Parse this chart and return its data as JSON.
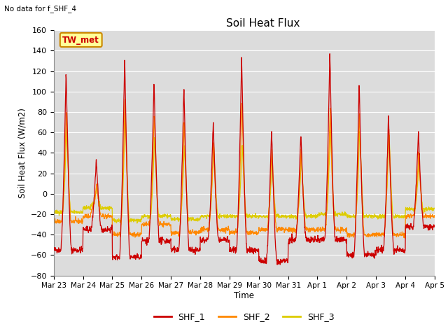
{
  "title": "Soil Heat Flux",
  "ylabel": "Soil Heat Flux (W/m2)",
  "xlabel": "Time",
  "no_data_text": "No data for f_SHF_4",
  "station_label": "TW_met",
  "ylim": [
    -80,
    160
  ],
  "yticks": [
    -80,
    -60,
    -40,
    -20,
    0,
    20,
    40,
    60,
    80,
    100,
    120,
    140,
    160
  ],
  "colors": {
    "SHF_1": "#cc0000",
    "SHF_2": "#ff8800",
    "SHF_3": "#ddcc00"
  },
  "bg_color": "#dcdcdc",
  "xtick_labels": [
    "Mar 23",
    "Mar 24",
    "Mar 25",
    "Mar 26",
    "Mar 27",
    "Mar 28",
    "Mar 29",
    "Mar 30",
    "Mar 31",
    "Apr 1",
    "Apr 2",
    "Apr 3",
    "Apr 4",
    "Apr 5"
  ]
}
